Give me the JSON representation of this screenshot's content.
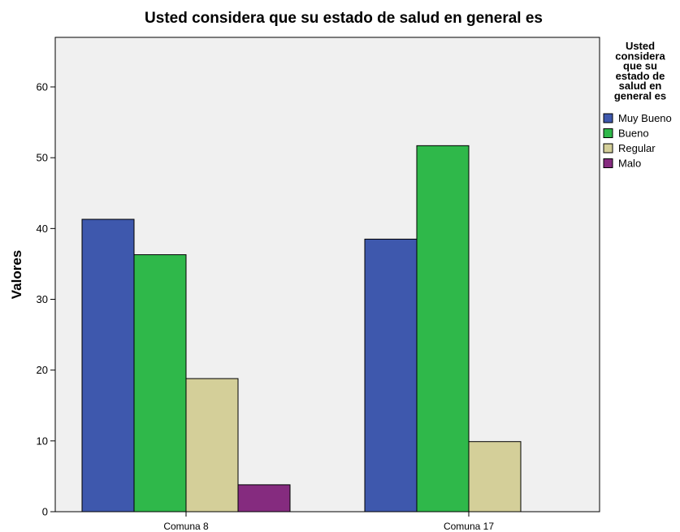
{
  "chart_data": {
    "type": "bar",
    "title": "Usted considera que su estado de salud  en general es",
    "xlabel": "",
    "ylabel": "Valores",
    "categories": [
      "Comuna 8",
      "Comuna 17"
    ],
    "series": [
      {
        "name": "Muy Bueno",
        "color": "#3e58ad",
        "values": [
          41.3,
          38.5
        ]
      },
      {
        "name": "Bueno",
        "color": "#2fb84a",
        "values": [
          36.3,
          51.7
        ]
      },
      {
        "name": "Regular",
        "color": "#d4cf99",
        "values": [
          18.8,
          9.9
        ]
      },
      {
        "name": "Malo",
        "color": "#852b7f",
        "values": [
          3.8,
          0
        ]
      }
    ],
    "ylim": [
      0,
      67
    ],
    "yticks": [
      0,
      10,
      20,
      30,
      40,
      50,
      60
    ],
    "legend": {
      "title_lines": [
        "Usted",
        "considera",
        "que su",
        "estado de",
        "salud  en",
        "general es"
      ],
      "position": "right"
    },
    "grid": false,
    "plot_background": "#f0f0f0"
  }
}
